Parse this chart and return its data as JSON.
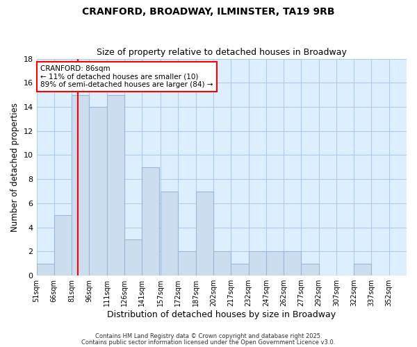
{
  "title": "CRANFORD, BROADWAY, ILMINSTER, TA19 9RB",
  "subtitle": "Size of property relative to detached houses in Broadway",
  "xlabel": "Distribution of detached houses by size in Broadway",
  "ylabel": "Number of detached properties",
  "bar_color": "#ccddf0",
  "bar_edge_color": "#9ab8d8",
  "background_color": "#ffffff",
  "plot_bg_color": "#ddeeff",
  "grid_color": "#aaccee",
  "bins": [
    "51sqm",
    "66sqm",
    "81sqm",
    "96sqm",
    "111sqm",
    "126sqm",
    "141sqm",
    "157sqm",
    "172sqm",
    "187sqm",
    "202sqm",
    "217sqm",
    "232sqm",
    "247sqm",
    "262sqm",
    "277sqm",
    "292sqm",
    "307sqm",
    "322sqm",
    "337sqm",
    "352sqm"
  ],
  "bin_edges": [
    51,
    66,
    81,
    96,
    111,
    126,
    141,
    157,
    172,
    187,
    202,
    217,
    232,
    247,
    262,
    277,
    292,
    307,
    322,
    337,
    352
  ],
  "bin_width": 15,
  "counts": [
    1,
    5,
    15,
    14,
    15,
    3,
    9,
    7,
    2,
    7,
    2,
    1,
    2,
    2,
    2,
    1,
    0,
    0,
    1,
    0
  ],
  "cranford_value": 86,
  "cranford_label": "CRANFORD: 86sqm",
  "annotation_line1": "← 11% of detached houses are smaller (10)",
  "annotation_line2": "89% of semi-detached houses are larger (84) →",
  "footnote1": "Contains HM Land Registry data © Crown copyright and database right 2025.",
  "footnote2": "Contains public sector information licensed under the Open Government Licence v3.0.",
  "ylim": [
    0,
    18
  ],
  "yticks": [
    0,
    2,
    4,
    6,
    8,
    10,
    12,
    14,
    16,
    18
  ],
  "xlim_left": 51,
  "xlim_right": 367
}
